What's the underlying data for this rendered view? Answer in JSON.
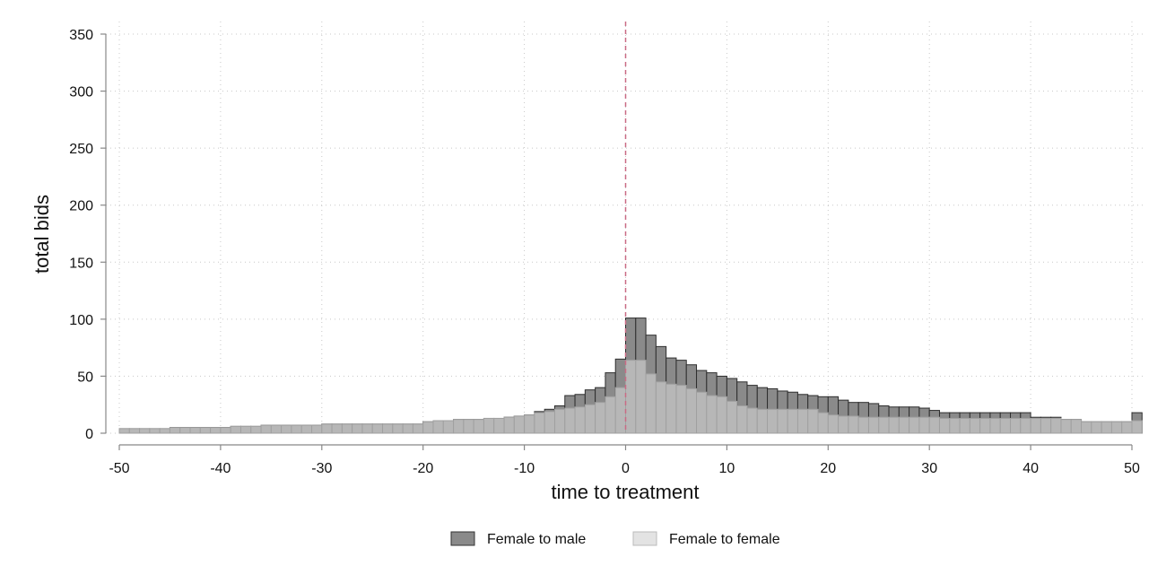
{
  "chart_data": {
    "type": "bar",
    "xlabel": "time to treatment",
    "ylabel": "total bids",
    "xlim": [
      -50,
      50
    ],
    "ylim": [
      0,
      350
    ],
    "x_ticks": [
      "-50",
      "-40",
      "-30",
      "-20",
      "-10",
      "0",
      "10",
      "20",
      "30",
      "40",
      "50"
    ],
    "y_ticks": [
      "0",
      "50",
      "100",
      "150",
      "200",
      "250",
      "300",
      "350"
    ],
    "grid": true,
    "reference_line": {
      "x": 0,
      "style": "dashed",
      "color": "#c96b85"
    },
    "legend": {
      "placement": "bottom"
    },
    "x": [
      -50,
      -49,
      -48,
      -47,
      -46,
      -45,
      -44,
      -43,
      -42,
      -41,
      -40,
      -39,
      -38,
      -37,
      -36,
      -35,
      -34,
      -33,
      -32,
      -31,
      -30,
      -29,
      -28,
      -27,
      -26,
      -25,
      -24,
      -23,
      -22,
      -21,
      -20,
      -19,
      -18,
      -17,
      -16,
      -15,
      -14,
      -13,
      -12,
      -11,
      -10,
      -9,
      -8,
      -7,
      -6,
      -5,
      -4,
      -3,
      -2,
      -1,
      0,
      1,
      2,
      3,
      4,
      5,
      6,
      7,
      8,
      9,
      10,
      11,
      12,
      13,
      14,
      15,
      16,
      17,
      18,
      19,
      20,
      21,
      22,
      23,
      24,
      25,
      26,
      27,
      28,
      29,
      30,
      31,
      32,
      33,
      34,
      35,
      36,
      37,
      38,
      39,
      40,
      41,
      42,
      43,
      44,
      45,
      46,
      47,
      48,
      49,
      50
    ],
    "series": [
      {
        "name": "Female to male",
        "color": "#8a8a8a",
        "values": [
          4,
          4,
          4,
          4,
          4,
          5,
          5,
          5,
          5,
          5,
          5,
          6,
          6,
          6,
          7,
          7,
          7,
          7,
          7,
          7,
          8,
          8,
          8,
          8,
          8,
          8,
          8,
          8,
          8,
          8,
          10,
          11,
          11,
          12,
          12,
          12,
          13,
          13,
          14,
          15,
          16,
          19,
          21,
          24,
          33,
          34,
          38,
          40,
          53,
          65,
          101,
          101,
          86,
          76,
          66,
          64,
          60,
          55,
          53,
          50,
          48,
          45,
          42,
          40,
          39,
          37,
          36,
          34,
          33,
          32,
          32,
          29,
          27,
          27,
          26,
          24,
          23,
          23,
          23,
          22,
          20,
          18,
          18,
          18,
          18,
          18,
          18,
          18,
          18,
          18,
          14,
          14,
          14,
          12,
          12,
          10,
          10,
          10,
          10,
          10,
          18
        ]
      },
      {
        "name": "Female to female",
        "color": "#b7b7b7",
        "values": [
          4,
          4,
          4,
          4,
          4,
          5,
          5,
          5,
          5,
          5,
          5,
          6,
          6,
          6,
          7,
          7,
          7,
          7,
          7,
          7,
          8,
          8,
          8,
          8,
          8,
          8,
          8,
          8,
          8,
          8,
          10,
          11,
          11,
          12,
          12,
          12,
          13,
          13,
          14,
          15,
          16,
          18,
          19,
          21,
          22,
          23,
          25,
          27,
          32,
          40,
          64,
          64,
          52,
          45,
          43,
          42,
          39,
          36,
          33,
          32,
          28,
          24,
          22,
          21,
          21,
          21,
          21,
          21,
          21,
          18,
          16,
          15,
          15,
          14,
          14,
          14,
          14,
          14,
          14,
          14,
          14,
          13,
          13,
          13,
          13,
          13,
          13,
          13,
          13,
          13,
          13,
          13,
          13,
          12,
          12,
          10,
          10,
          10,
          10,
          10,
          11
        ]
      }
    ]
  }
}
